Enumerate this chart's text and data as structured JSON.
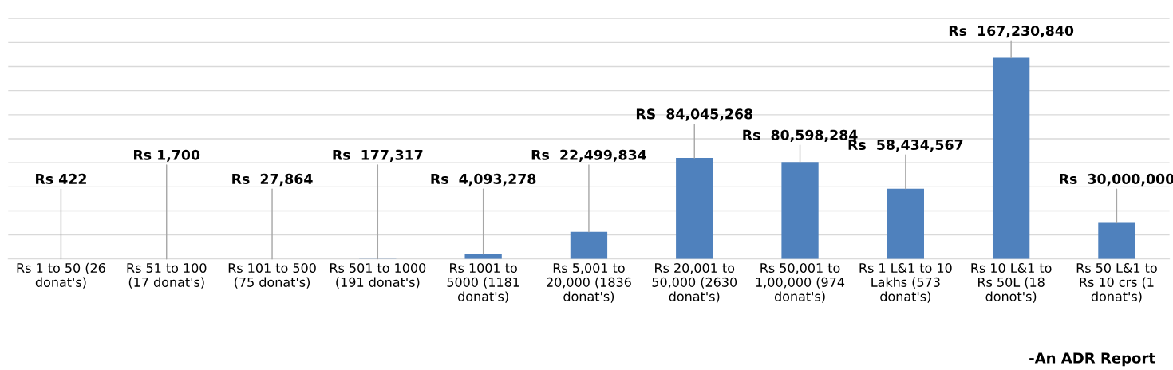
{
  "chart_data": {
    "type": "bar",
    "categories": [
      "Rs 1 to 50 (26\ndonat's)",
      "Rs 51 to 100\n(17 donat's)",
      "Rs 101 to 500\n(75 donat's)",
      "Rs 501 to 1000\n(191 donat's)",
      "Rs 1001 to\n5000 (1181\ndonat's)",
      "Rs 5,001 to\n20,000 (1836\ndonat's)",
      "Rs 20,001 to\n50,000 (2630\ndonat's)",
      "Rs 50,001 to\n1,00,000 (974\ndonat's)",
      "Rs 1 L&1 to 10\nLakhs (573\ndonat's)",
      "Rs 10 L&1 to\nRs 50L (18\ndonot's)",
      "Rs 50 L&1 to\nRs 10 crs (1\ndonat's)"
    ],
    "values": [
      422,
      1700,
      27864,
      177317,
      4093278,
      22499834,
      84045268,
      80598284,
      58434567,
      167230840,
      30000000
    ],
    "value_labels": [
      "Rs 422",
      "Rs 1,700",
      "Rs  27,864",
      "Rs  177,317",
      "Rs  4,093,278",
      "Rs  22,499,834",
      "RS  84,045,268",
      "Rs  80,598,284",
      "Rs  58,434,567",
      "Rs  167,230,840",
      "Rs  30,000,000"
    ],
    "color": "#4f81bd",
    "ylim": [
      0,
      200000000
    ],
    "yticks": [
      {
        "value": 0,
        "label": null
      },
      {
        "value": 20000000,
        "label": null
      },
      {
        "value": 40000000,
        "label": null
      },
      {
        "value": 60000000,
        "label": null
      },
      {
        "value": 80000000,
        "label": null
      },
      {
        "value": 100000000,
        "label": null
      },
      {
        "value": 120000000,
        "label": null
      },
      {
        "value": 140000000,
        "label": null
      },
      {
        "value": 160000000,
        "label": null
      },
      {
        "value": 180000000,
        "label": null
      },
      {
        "value": 200000000,
        "label": null
      }
    ],
    "grid": "y",
    "tick_labels": "x",
    "annotations": [
      "-An ADR Report"
    ]
  }
}
